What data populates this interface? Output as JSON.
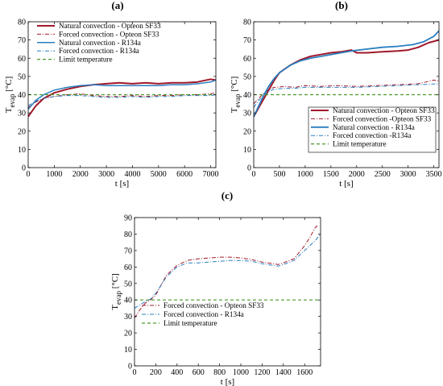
{
  "chart_data": [
    {
      "panel_label": "(a)",
      "type": "line",
      "xlabel": "t [s]",
      "ylabel": "T",
      "ylabel_sub": "evap",
      "ylabel_unit": " [°C]",
      "xlim": [
        0,
        7200
      ],
      "ylim": [
        0,
        80
      ],
      "xticks": [
        0,
        1000,
        2000,
        3000,
        4000,
        5000,
        6000,
        7000
      ],
      "yticks": [
        0,
        10,
        20,
        30,
        40,
        50,
        60,
        70,
        80
      ],
      "grid": false,
      "legend_position": "top-left",
      "series": [
        {
          "name": "Natural convection - Opteon SF33",
          "color": "#a0182a",
          "dash": "solid",
          "width": 2,
          "x": [
            0,
            300,
            600,
            1000,
            1500,
            2000,
            2500,
            3000,
            3500,
            4000,
            4500,
            5000,
            5500,
            6000,
            6500,
            7000,
            7200
          ],
          "y": [
            28,
            34,
            38,
            41,
            43,
            44.5,
            45.5,
            46,
            46.5,
            46,
            46.5,
            46,
            46.5,
            46.5,
            47,
            48.5,
            48
          ]
        },
        {
          "name": "Forced convection - Opteon SF33",
          "color": "#a0182a",
          "dash": "dashdot",
          "width": 1,
          "x": [
            0,
            300,
            600,
            1000,
            1500,
            2000,
            2500,
            3000,
            3500,
            4000,
            4500,
            5000,
            5500,
            6000,
            6500,
            7000,
            7200
          ],
          "y": [
            33,
            36,
            38,
            39,
            40,
            40.5,
            39.5,
            39,
            39,
            39.5,
            39,
            39.5,
            39.5,
            40,
            40,
            40.5,
            41
          ]
        },
        {
          "name": "Natural convection - R134a",
          "color": "#2a7fc0",
          "dash": "solid",
          "width": 1.5,
          "x": [
            0,
            300,
            600,
            1000,
            1500,
            2000,
            2500,
            3000,
            3500,
            4000,
            4500,
            5000,
            5500,
            6000,
            6500,
            7000,
            7200
          ],
          "y": [
            32,
            37,
            40,
            42.5,
            44,
            45,
            45.5,
            45,
            45,
            45,
            45,
            45,
            45.5,
            45.5,
            46,
            47,
            48
          ]
        },
        {
          "name": "Forced convection - R134a",
          "color": "#2a7fc0",
          "dash": "dashdot",
          "width": 1,
          "x": [
            0,
            300,
            600,
            1000,
            1500,
            2000,
            2500,
            3000,
            3500,
            4000,
            4500,
            5000,
            5500,
            6000,
            6500,
            7000,
            7200
          ],
          "y": [
            34,
            36.5,
            38,
            39,
            39.5,
            39.5,
            39,
            38.5,
            38.5,
            39,
            38.5,
            39,
            39,
            39.5,
            39.5,
            39.5,
            40
          ]
        },
        {
          "name": "Limit temperature",
          "color": "#4a9a2a",
          "dash": "dash",
          "width": 1.2,
          "x": [
            0,
            7200
          ],
          "y": [
            40,
            40
          ]
        }
      ]
    },
    {
      "panel_label": "(b)",
      "type": "line",
      "xlabel": "t [s]",
      "ylabel": "T",
      "ylabel_sub": "evap",
      "ylabel_unit": " [°C]",
      "xlim": [
        0,
        3600
      ],
      "ylim": [
        0,
        80
      ],
      "xticks": [
        0,
        500,
        1000,
        1500,
        2000,
        2500,
        3000,
        3500
      ],
      "yticks": [
        0,
        10,
        20,
        30,
        40,
        50,
        60,
        70,
        80
      ],
      "grid": false,
      "legend_position": "bottom-right",
      "series": [
        {
          "name": "Natural convection - Opteon SF33",
          "color": "#a0182a",
          "dash": "solid",
          "width": 2,
          "x": [
            0,
            100,
            200,
            300,
            400,
            500,
            700,
            900,
            1100,
            1300,
            1500,
            1700,
            1900,
            2000,
            2200,
            2500,
            2800,
            3000,
            3200,
            3400,
            3600
          ],
          "y": [
            28,
            33,
            38,
            43,
            48,
            52,
            56,
            59,
            61,
            62,
            63,
            63.5,
            64.5,
            63,
            63,
            63.5,
            64,
            64.5,
            66,
            68.5,
            70
          ]
        },
        {
          "name": "Forced convection -Opteon SF33",
          "color": "#a0182a",
          "dash": "dashdot",
          "width": 1,
          "x": [
            0,
            100,
            200,
            300,
            400,
            600,
            800,
            1000,
            1300,
            1600,
            2000,
            2400,
            2800,
            3200,
            3500,
            3600
          ],
          "y": [
            35,
            38,
            41,
            43,
            44,
            44.5,
            44,
            45,
            44.5,
            45,
            44.5,
            45,
            45.5,
            46,
            48,
            47.5
          ]
        },
        {
          "name": "Natural convection - R134a",
          "color": "#2a7fc0",
          "dash": "solid",
          "width": 1.8,
          "x": [
            0,
            100,
            200,
            300,
            400,
            500,
            700,
            900,
            1100,
            1300,
            1500,
            1700,
            1900,
            2200,
            2500,
            2800,
            3100,
            3300,
            3500,
            3600
          ],
          "y": [
            28,
            34,
            40,
            45,
            49,
            52,
            56,
            58.5,
            60,
            61,
            62,
            63,
            64,
            65,
            66,
            66.5,
            67.5,
            69,
            72,
            75
          ]
        },
        {
          "name": "Forced convection -R134a",
          "color": "#2a7fc0",
          "dash": "dashdot",
          "width": 1,
          "x": [
            0,
            100,
            200,
            300,
            400,
            600,
            800,
            1000,
            1300,
            1600,
            2000,
            2400,
            2800,
            3200,
            3600
          ],
          "y": [
            33,
            37,
            40,
            42,
            43,
            43.5,
            43.5,
            44,
            44,
            44,
            44,
            44.5,
            45,
            45.5,
            46
          ]
        },
        {
          "name": "Limit temperature",
          "color": "#4a9a2a",
          "dash": "dash",
          "width": 1.2,
          "x": [
            0,
            3600
          ],
          "y": [
            40,
            40
          ]
        }
      ]
    },
    {
      "panel_label": "(c)",
      "type": "line",
      "xlabel": "t [s]",
      "ylabel": "T",
      "ylabel_sub": "evap",
      "ylabel_unit": " [°C]",
      "xlim": [
        0,
        1750
      ],
      "ylim": [
        0,
        90
      ],
      "xticks": [
        0,
        200,
        400,
        600,
        800,
        1000,
        1200,
        1400,
        1600
      ],
      "yticks": [
        0,
        10,
        20,
        30,
        40,
        50,
        60,
        70,
        80,
        90
      ],
      "grid": false,
      "legend_position": "bottom-left",
      "series": [
        {
          "name": "Forced convection - Opteon SF33",
          "color": "#a0182a",
          "dash": "dashdot",
          "width": 1,
          "x": [
            0,
            50,
            100,
            150,
            200,
            250,
            300,
            400,
            500,
            600,
            700,
            800,
            900,
            1000,
            1100,
            1200,
            1300,
            1350,
            1400,
            1500,
            1600,
            1650,
            1700,
            1720
          ],
          "y": [
            29,
            34,
            38,
            40,
            43,
            49,
            55,
            61,
            64,
            65,
            65.5,
            66,
            66,
            65.5,
            64.5,
            63,
            62,
            61.5,
            62.5,
            65,
            73,
            78,
            84,
            85
          ]
        },
        {
          "name": "Forced convection - R134a",
          "color": "#2a7fc0",
          "dash": "dashdot",
          "width": 1,
          "x": [
            0,
            50,
            100,
            150,
            200,
            250,
            300,
            400,
            500,
            600,
            700,
            800,
            900,
            1000,
            1100,
            1200,
            1300,
            1350,
            1400,
            1500,
            1600,
            1650,
            1700,
            1750
          ],
          "y": [
            35,
            37,
            39,
            40.5,
            44,
            49,
            54,
            60,
            62.5,
            62.5,
            63,
            63.5,
            64,
            64,
            63.5,
            62,
            61,
            60.5,
            61.5,
            64,
            70,
            73,
            76,
            80
          ]
        },
        {
          "name": "Limit temperature",
          "color": "#4a9a2a",
          "dash": "dash",
          "width": 1.2,
          "x": [
            0,
            1750
          ],
          "y": [
            40,
            40
          ]
        }
      ]
    }
  ]
}
